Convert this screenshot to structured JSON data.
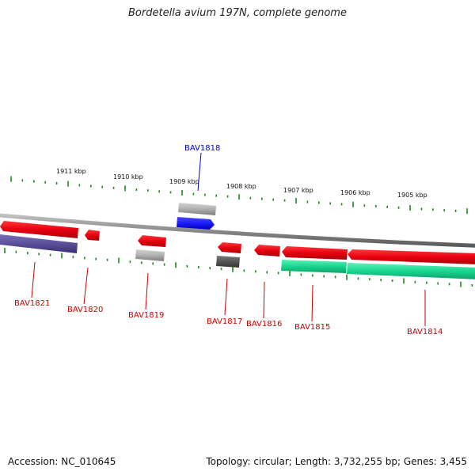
{
  "title": "Bordetella avium 197N, complete genome",
  "footer": {
    "accession": "Accession: NC_010645",
    "summary": "Topology: circular; Length: 3,732,255 bp; Genes: 3,455"
  },
  "colors": {
    "forward_gene": "#e8000f",
    "reverse_cds": "#5b4f99",
    "green_feature": "#19d68f",
    "grey_feature": "#aaaaaa",
    "dark_grey_feature": "#555555",
    "blue_gene": "#1b1bff",
    "tick": "#1a8a1a",
    "label_red": "#cc0000",
    "label_blue": "#0000cc"
  },
  "scale": {
    "labels": [
      "1911 kbp",
      "1910 kbp",
      "1909 kbp",
      "1908 kbp",
      "1907 kbp",
      "1906 kbp",
      "1905 kbp"
    ]
  },
  "gene_labels": [
    {
      "text": "BAV1818",
      "color": "blue"
    },
    {
      "text": "BAV1821",
      "color": "red"
    },
    {
      "text": "BAV1820",
      "color": "red"
    },
    {
      "text": "BAV1819",
      "color": "red"
    },
    {
      "text": "BAV1817",
      "color": "red"
    },
    {
      "text": "BAV1816",
      "color": "red"
    },
    {
      "text": "BAV1815",
      "color": "red"
    },
    {
      "text": "BAV1814",
      "color": "red"
    }
  ]
}
